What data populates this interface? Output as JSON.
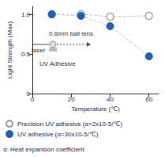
{
  "chart_data": {
    "type": "line",
    "x_label": "Temperature (℃)",
    "y_label": "Light Strength (Max)",
    "xlim": [
      0,
      65
    ],
    "xticks": [
      0,
      20,
      40,
      60
    ],
    "ylim": [
      0,
      1.1
    ],
    "yticks": [
      0,
      0.5,
      {
        "value": 1,
        "label": "1.0"
      }
    ],
    "grid": false,
    "legend": "bottom-left",
    "x": [
      10,
      25,
      40,
      60
    ],
    "series": [
      {
        "name": "Precision UV adhesive (α=2x10-5/℃)",
        "color": "#9a9a9a",
        "marker": "open",
        "line_style": "dashed",
        "values": [
          1.0,
          1.0,
          0.97,
          0.98
        ]
      },
      {
        "name": "UV adhesive (α=30x10-5/℃)",
        "color": "#1f5fbf",
        "marker": "filled",
        "line_style": "dashed",
        "values": [
          1.0,
          0.98,
          0.85,
          0.47
        ]
      }
    ],
    "annotations": [
      "0.6mm ball lens",
      "laser",
      "UV Adhesive",
      "α: Heat expansion coefficient"
    ]
  }
}
